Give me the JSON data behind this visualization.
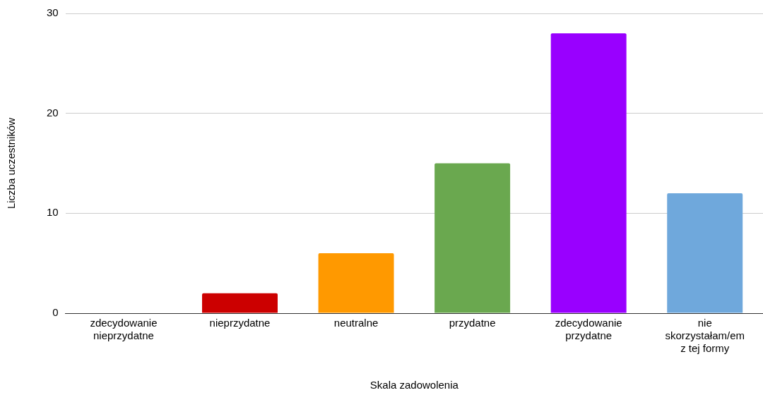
{
  "chart_data": {
    "type": "bar",
    "xlabel": "Skala zadowolenia",
    "ylabel": "Liczba uczestników",
    "categories": [
      "zdecydowanie nieprzydatne",
      "nieprzydatne",
      "neutralne",
      "przydatne",
      "zdecydowanie przydatne",
      "nie skorzystałam/em z tej formy"
    ],
    "values": [
      0,
      2,
      6,
      15,
      28,
      12
    ],
    "colors": [
      "#3c78d8",
      "#cc0000",
      "#ff9900",
      "#6aa84f",
      "#9900ff",
      "#6fa8dc"
    ],
    "ylim": [
      0,
      30
    ],
    "yticks": [
      0,
      10,
      20,
      30
    ],
    "grid": "y",
    "legend": false
  }
}
